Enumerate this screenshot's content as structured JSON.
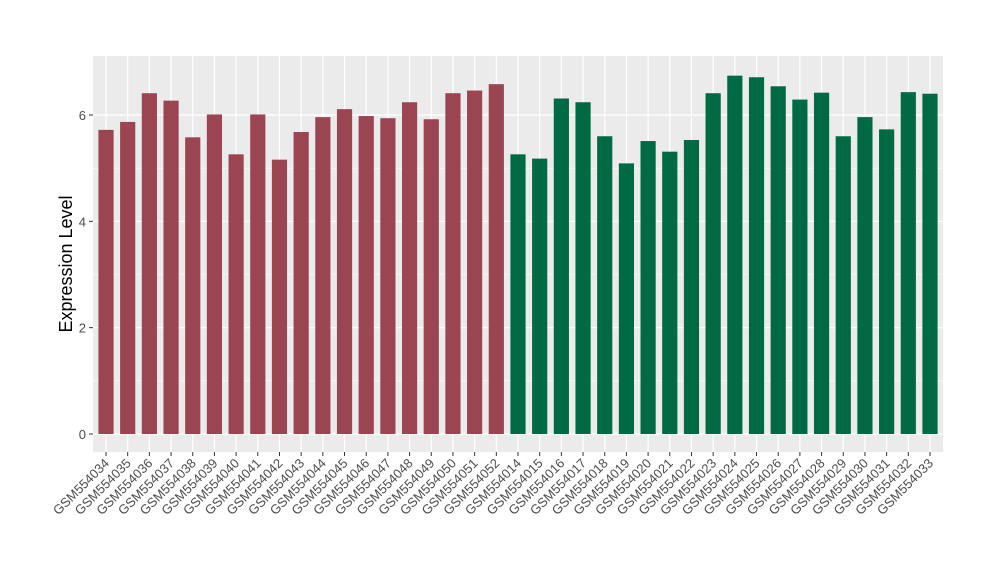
{
  "chart_data": {
    "type": "bar",
    "title": "",
    "xlabel": "",
    "ylabel": "Expression Level",
    "ylim": [
      0,
      7.1
    ],
    "yticks": [
      0,
      2,
      4,
      6
    ],
    "grid": true,
    "legend": "none",
    "categories": [
      "GSM554034",
      "GSM554035",
      "GSM554036",
      "GSM554037",
      "GSM554038",
      "GSM554039",
      "GSM554040",
      "GSM554041",
      "GSM554042",
      "GSM554043",
      "GSM554044",
      "GSM554045",
      "GSM554046",
      "GSM554047",
      "GSM554048",
      "GSM554049",
      "GSM554050",
      "GSM554051",
      "GSM554052",
      "GSM554014",
      "GSM554015",
      "GSM554016",
      "GSM554017",
      "GSM554018",
      "GSM554019",
      "GSM554020",
      "GSM554021",
      "GSM554022",
      "GSM554023",
      "GSM554024",
      "GSM554025",
      "GSM554026",
      "GSM554027",
      "GSM554028",
      "GSM554029",
      "GSM554030",
      "GSM554031",
      "GSM554032",
      "GSM554033"
    ],
    "values": [
      5.72,
      5.87,
      6.41,
      6.27,
      5.58,
      6.01,
      5.26,
      6.01,
      5.16,
      5.68,
      5.96,
      6.11,
      5.98,
      5.94,
      6.24,
      5.92,
      6.41,
      6.46,
      6.58,
      5.26,
      5.18,
      6.31,
      6.24,
      5.6,
      5.09,
      5.51,
      5.31,
      5.53,
      6.41,
      6.74,
      6.71,
      6.54,
      6.29,
      6.42,
      5.6,
      5.96,
      5.73,
      6.43,
      6.4
    ],
    "group_colors": [
      "#9b4452",
      "#006a44"
    ],
    "groups": [
      0,
      0,
      0,
      0,
      0,
      0,
      0,
      0,
      0,
      0,
      0,
      0,
      0,
      0,
      0,
      0,
      0,
      0,
      0,
      1,
      1,
      1,
      1,
      1,
      1,
      1,
      1,
      1,
      1,
      1,
      1,
      1,
      1,
      1,
      1,
      1,
      1,
      1,
      1
    ],
    "panel_color": "#ebebeb",
    "grid_color": "#ffffff"
  }
}
